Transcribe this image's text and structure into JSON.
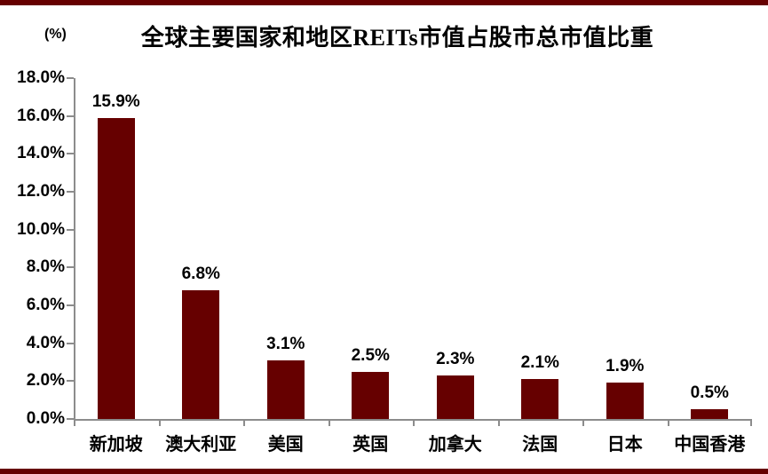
{
  "header": {
    "unit_label": "(%)",
    "title": "全球主要国家和地区REITs市值占股市总市值比重"
  },
  "colors": {
    "bar": "#660000",
    "frame_border": "#660000",
    "axis": "#8c8c8c",
    "text": "#000000"
  },
  "chart_data": {
    "type": "bar",
    "title": "全球主要国家和地区REITs市值占股市总市值比重",
    "unit": "(%)",
    "categories": [
      "新加坡",
      "澳大利亚",
      "美国",
      "英国",
      "加拿大",
      "法国",
      "日本",
      "中国香港"
    ],
    "values": [
      15.9,
      6.8,
      3.1,
      2.5,
      2.3,
      2.1,
      1.9,
      0.5
    ],
    "value_labels": [
      "15.9%",
      "6.8%",
      "3.1%",
      "2.5%",
      "2.3%",
      "2.1%",
      "1.9%",
      "0.5%"
    ],
    "xlabel": "",
    "ylabel": "(%)",
    "ylim": [
      0,
      18
    ],
    "ytick_step": 2,
    "ytick_labels": [
      "0.0%",
      "2.0%",
      "4.0%",
      "6.0%",
      "8.0%",
      "10.0%",
      "12.0%",
      "14.0%",
      "16.0%",
      "18.0%"
    ],
    "grid": false,
    "legend_position": "none",
    "bar_color": "#660000"
  }
}
